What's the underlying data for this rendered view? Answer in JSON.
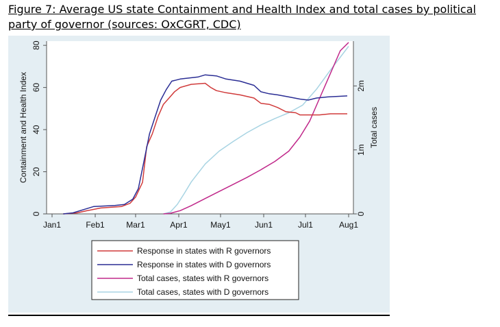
{
  "caption": {
    "line1": "Figure 7: Average US state Containment and Health Index and total cases by political",
    "line2": "party of governor (sources: OxCGRT, CDC)"
  },
  "colors": {
    "plot_background": "#e4eef3",
    "r_response": "#d03a3a",
    "d_response": "#2a2d94",
    "r_cases": "#c0288a",
    "d_cases": "#a8d4e3"
  },
  "chart_data": {
    "type": "line",
    "x_ticks": [
      "Jan1",
      "Feb1",
      "Mar1",
      "Apr1",
      "May1",
      "Jun1",
      "Jul1",
      "Aug1"
    ],
    "x_tick_days": [
      0,
      31,
      60,
      91,
      121,
      152,
      182,
      213
    ],
    "xlim": [
      0,
      213
    ],
    "y_left": {
      "label": "Containment and Health Index",
      "ticks": [
        "0",
        "20",
        "40",
        "60",
        "80"
      ],
      "tick_values": [
        0,
        20,
        40,
        60,
        80
      ],
      "lim": [
        0,
        82
      ]
    },
    "y_right": {
      "label": "Total cases",
      "ticks": [
        "0",
        "1m",
        "2m"
      ],
      "tick_values": [
        0,
        1000000,
        2000000
      ],
      "lim": [
        0,
        2700000
      ]
    },
    "legend_position": "bottom",
    "series": [
      {
        "name": "Response in states with R governors",
        "axis": "left",
        "color": "#d03a3a",
        "points": [
          [
            8,
            0
          ],
          [
            18,
            0.5
          ],
          [
            25,
            1.5
          ],
          [
            35,
            2.8
          ],
          [
            50,
            3.5
          ],
          [
            56,
            5
          ],
          [
            60,
            8
          ],
          [
            65,
            15
          ],
          [
            68,
            32
          ],
          [
            72,
            38
          ],
          [
            76,
            46
          ],
          [
            80,
            52
          ],
          [
            84,
            55
          ],
          [
            88,
            58
          ],
          [
            92,
            60
          ],
          [
            100,
            61.5
          ],
          [
            110,
            62
          ],
          [
            114,
            60
          ],
          [
            118,
            58.5
          ],
          [
            125,
            57.5
          ],
          [
            135,
            56.5
          ],
          [
            145,
            55
          ],
          [
            150,
            52.5
          ],
          [
            156,
            52
          ],
          [
            162,
            50.5
          ],
          [
            168,
            48.5
          ],
          [
            175,
            48
          ],
          [
            178,
            47
          ],
          [
            185,
            47
          ],
          [
            192,
            47
          ],
          [
            200,
            47.5
          ],
          [
            212,
            47.5
          ]
        ]
      },
      {
        "name": "Response in states with D governors",
        "axis": "left",
        "color": "#2a2d94",
        "points": [
          [
            8,
            0
          ],
          [
            15,
            0.5
          ],
          [
            25,
            2.5
          ],
          [
            30,
            3.5
          ],
          [
            45,
            4
          ],
          [
            52,
            4.5
          ],
          [
            58,
            7
          ],
          [
            62,
            12
          ],
          [
            66,
            25
          ],
          [
            70,
            38
          ],
          [
            74,
            46
          ],
          [
            78,
            54
          ],
          [
            82,
            59
          ],
          [
            86,
            63
          ],
          [
            92,
            64
          ],
          [
            105,
            65
          ],
          [
            110,
            66
          ],
          [
            118,
            65.5
          ],
          [
            125,
            64
          ],
          [
            135,
            63
          ],
          [
            145,
            61
          ],
          [
            150,
            58
          ],
          [
            156,
            57
          ],
          [
            162,
            56.5
          ],
          [
            170,
            55.5
          ],
          [
            178,
            54.5
          ],
          [
            184,
            54
          ],
          [
            190,
            55
          ],
          [
            198,
            55.5
          ],
          [
            212,
            56
          ]
        ]
      },
      {
        "name": "Total cases, states with R governors",
        "axis": "right",
        "color": "#c0288a",
        "points": [
          [
            80,
            0
          ],
          [
            85,
            10000
          ],
          [
            92,
            50000
          ],
          [
            100,
            130000
          ],
          [
            110,
            240000
          ],
          [
            120,
            350000
          ],
          [
            130,
            460000
          ],
          [
            140,
            570000
          ],
          [
            150,
            690000
          ],
          [
            160,
            820000
          ],
          [
            170,
            980000
          ],
          [
            178,
            1200000
          ],
          [
            185,
            1450000
          ],
          [
            192,
            1800000
          ],
          [
            200,
            2200000
          ],
          [
            207,
            2550000
          ],
          [
            213,
            2680000
          ]
        ]
      },
      {
        "name": "Total cases, states with D governors",
        "axis": "right",
        "color": "#a8d4e3",
        "points": [
          [
            80,
            0
          ],
          [
            85,
            30000
          ],
          [
            90,
            150000
          ],
          [
            95,
            320000
          ],
          [
            100,
            500000
          ],
          [
            110,
            780000
          ],
          [
            120,
            980000
          ],
          [
            130,
            1130000
          ],
          [
            140,
            1270000
          ],
          [
            150,
            1390000
          ],
          [
            160,
            1490000
          ],
          [
            170,
            1580000
          ],
          [
            180,
            1700000
          ],
          [
            190,
            1950000
          ],
          [
            200,
            2250000
          ],
          [
            213,
            2620000
          ]
        ]
      }
    ]
  }
}
